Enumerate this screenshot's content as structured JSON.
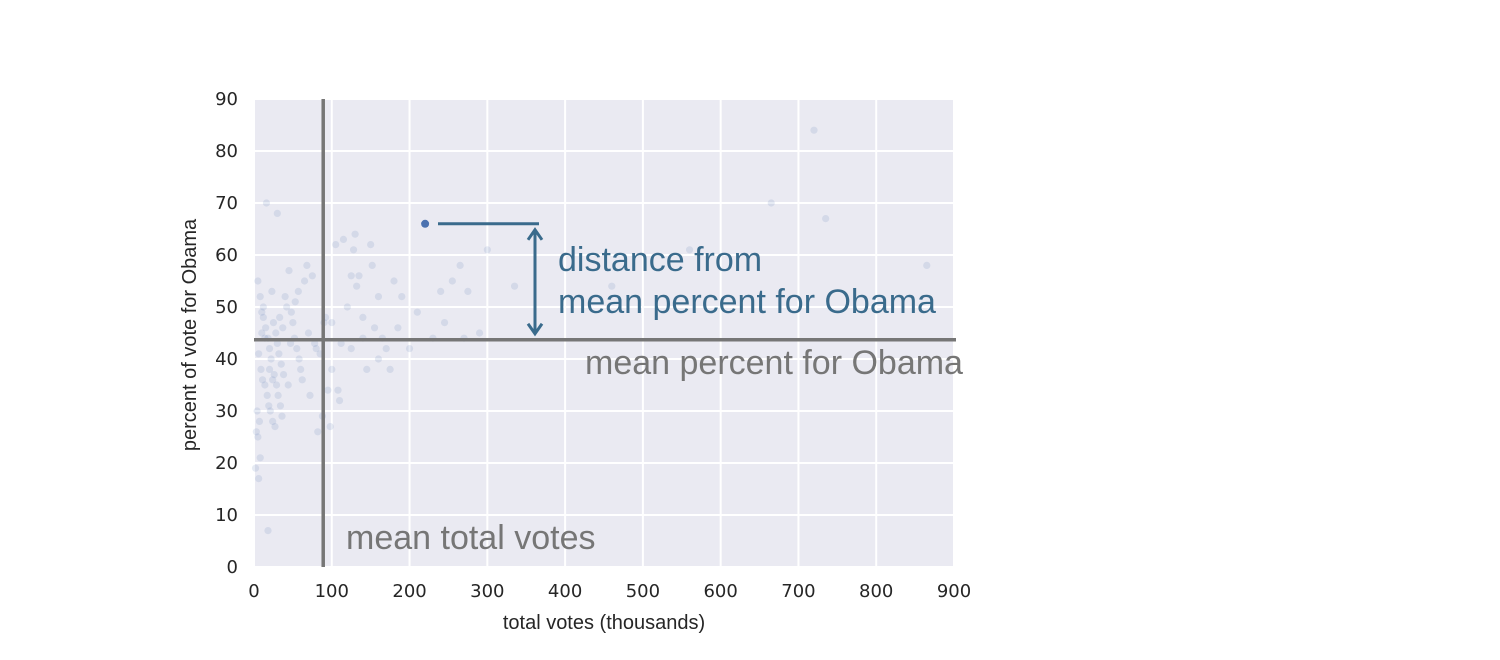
{
  "chart_data": {
    "type": "scatter",
    "title": "",
    "xlabel": "total votes (thousands)",
    "ylabel": "percent of vote for Obama",
    "xlim": [
      0,
      900
    ],
    "ylim": [
      0,
      90
    ],
    "xticks": [
      0,
      100,
      200,
      300,
      400,
      500,
      600,
      700,
      800,
      900
    ],
    "yticks": [
      0,
      10,
      20,
      30,
      40,
      50,
      60,
      70,
      80,
      90
    ],
    "grid": true,
    "colors": {
      "background": "#eaeaf2",
      "grid": "#ffffff",
      "points": "#4c72b0",
      "mean_lines": "#767676",
      "annotation": "#3a6b8c"
    },
    "mean_total_votes": 89,
    "mean_percent_obama": 43.7,
    "highlight_point": {
      "x": 220,
      "y": 66
    },
    "annotations": {
      "mean_x_label": "mean total votes",
      "mean_y_label": "mean percent for Obama",
      "distance_label_line1": "distance from",
      "distance_label_line2": "mean percent for Obama"
    },
    "points": [
      {
        "x": 5,
        "y": 55
      },
      {
        "x": 8,
        "y": 52
      },
      {
        "x": 10,
        "y": 49
      },
      {
        "x": 12,
        "y": 48
      },
      {
        "x": 15,
        "y": 46
      },
      {
        "x": 18,
        "y": 44
      },
      {
        "x": 20,
        "y": 42
      },
      {
        "x": 22,
        "y": 40
      },
      {
        "x": 6,
        "y": 41
      },
      {
        "x": 9,
        "y": 38
      },
      {
        "x": 11,
        "y": 36
      },
      {
        "x": 14,
        "y": 35
      },
      {
        "x": 17,
        "y": 33
      },
      {
        "x": 19,
        "y": 31
      },
      {
        "x": 21,
        "y": 30
      },
      {
        "x": 24,
        "y": 28
      },
      {
        "x": 4,
        "y": 30
      },
      {
        "x": 7,
        "y": 28
      },
      {
        "x": 3,
        "y": 26
      },
      {
        "x": 5,
        "y": 25
      },
      {
        "x": 8,
        "y": 21
      },
      {
        "x": 2,
        "y": 19
      },
      {
        "x": 6,
        "y": 17
      },
      {
        "x": 18,
        "y": 7
      },
      {
        "x": 25,
        "y": 47
      },
      {
        "x": 28,
        "y": 45
      },
      {
        "x": 30,
        "y": 43
      },
      {
        "x": 32,
        "y": 41
      },
      {
        "x": 35,
        "y": 39
      },
      {
        "x": 38,
        "y": 37
      },
      {
        "x": 40,
        "y": 52
      },
      {
        "x": 42,
        "y": 50
      },
      {
        "x": 26,
        "y": 37
      },
      {
        "x": 29,
        "y": 35
      },
      {
        "x": 31,
        "y": 33
      },
      {
        "x": 34,
        "y": 31
      },
      {
        "x": 36,
        "y": 29
      },
      {
        "x": 27,
        "y": 27
      },
      {
        "x": 33,
        "y": 48
      },
      {
        "x": 37,
        "y": 46
      },
      {
        "x": 45,
        "y": 57
      },
      {
        "x": 48,
        "y": 49
      },
      {
        "x": 50,
        "y": 47
      },
      {
        "x": 52,
        "y": 44
      },
      {
        "x": 55,
        "y": 42
      },
      {
        "x": 58,
        "y": 40
      },
      {
        "x": 60,
        "y": 38
      },
      {
        "x": 62,
        "y": 36
      },
      {
        "x": 44,
        "y": 35
      },
      {
        "x": 47,
        "y": 43
      },
      {
        "x": 53,
        "y": 51
      },
      {
        "x": 57,
        "y": 53
      },
      {
        "x": 65,
        "y": 55
      },
      {
        "x": 68,
        "y": 58
      },
      {
        "x": 70,
        "y": 45
      },
      {
        "x": 72,
        "y": 33
      },
      {
        "x": 16,
        "y": 70
      },
      {
        "x": 30,
        "y": 68
      },
      {
        "x": 12,
        "y": 50
      },
      {
        "x": 23,
        "y": 53
      },
      {
        "x": 14,
        "y": 44
      },
      {
        "x": 10,
        "y": 45
      },
      {
        "x": 20,
        "y": 38
      },
      {
        "x": 24,
        "y": 36
      },
      {
        "x": 75,
        "y": 56
      },
      {
        "x": 78,
        "y": 43
      },
      {
        "x": 80,
        "y": 42
      },
      {
        "x": 82,
        "y": 26
      },
      {
        "x": 85,
        "y": 41
      },
      {
        "x": 88,
        "y": 29
      },
      {
        "x": 90,
        "y": 47
      },
      {
        "x": 92,
        "y": 48
      },
      {
        "x": 95,
        "y": 34
      },
      {
        "x": 98,
        "y": 27
      },
      {
        "x": 100,
        "y": 47
      },
      {
        "x": 105,
        "y": 62
      },
      {
        "x": 108,
        "y": 34
      },
      {
        "x": 110,
        "y": 32
      },
      {
        "x": 112,
        "y": 43
      },
      {
        "x": 115,
        "y": 63
      },
      {
        "x": 120,
        "y": 50
      },
      {
        "x": 125,
        "y": 56
      },
      {
        "x": 128,
        "y": 61
      },
      {
        "x": 130,
        "y": 64
      },
      {
        "x": 132,
        "y": 54
      },
      {
        "x": 135,
        "y": 56
      },
      {
        "x": 140,
        "y": 44
      },
      {
        "x": 145,
        "y": 38
      },
      {
        "x": 150,
        "y": 62
      },
      {
        "x": 152,
        "y": 58
      },
      {
        "x": 155,
        "y": 46
      },
      {
        "x": 160,
        "y": 40
      },
      {
        "x": 165,
        "y": 44
      },
      {
        "x": 170,
        "y": 42
      },
      {
        "x": 175,
        "y": 38
      },
      {
        "x": 180,
        "y": 55
      },
      {
        "x": 190,
        "y": 52
      },
      {
        "x": 200,
        "y": 42
      },
      {
        "x": 210,
        "y": 49
      },
      {
        "x": 230,
        "y": 44
      },
      {
        "x": 240,
        "y": 53
      },
      {
        "x": 245,
        "y": 47
      },
      {
        "x": 255,
        "y": 55
      },
      {
        "x": 265,
        "y": 58
      },
      {
        "x": 270,
        "y": 44
      },
      {
        "x": 275,
        "y": 53
      },
      {
        "x": 290,
        "y": 45
      },
      {
        "x": 300,
        "y": 61
      },
      {
        "x": 335,
        "y": 54
      },
      {
        "x": 460,
        "y": 54
      },
      {
        "x": 560,
        "y": 61
      },
      {
        "x": 665,
        "y": 70
      },
      {
        "x": 720,
        "y": 84
      },
      {
        "x": 735,
        "y": 67
      },
      {
        "x": 865,
        "y": 58
      },
      {
        "x": 140,
        "y": 48
      },
      {
        "x": 160,
        "y": 52
      },
      {
        "x": 185,
        "y": 46
      },
      {
        "x": 100,
        "y": 38
      },
      {
        "x": 125,
        "y": 42
      }
    ]
  }
}
